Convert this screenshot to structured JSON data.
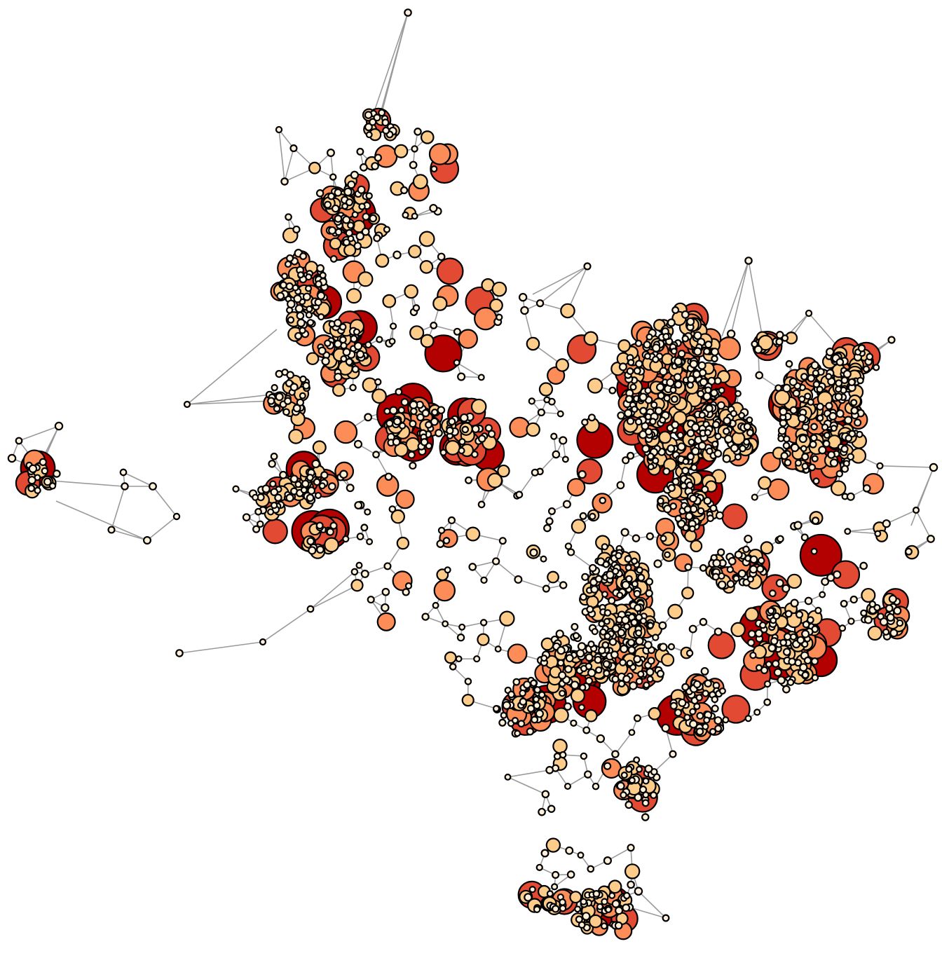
{
  "colors": {
    "background": "#ffffff",
    "edge": "#9a9a9a",
    "node_outline": "#000000",
    "tier_1": "#fef0d9",
    "tier_2": "#fdcc8a",
    "tier_3": "#fc8d59",
    "tier_4": "#e34a33",
    "tier_5": "#b30000"
  },
  "legend": []
}
